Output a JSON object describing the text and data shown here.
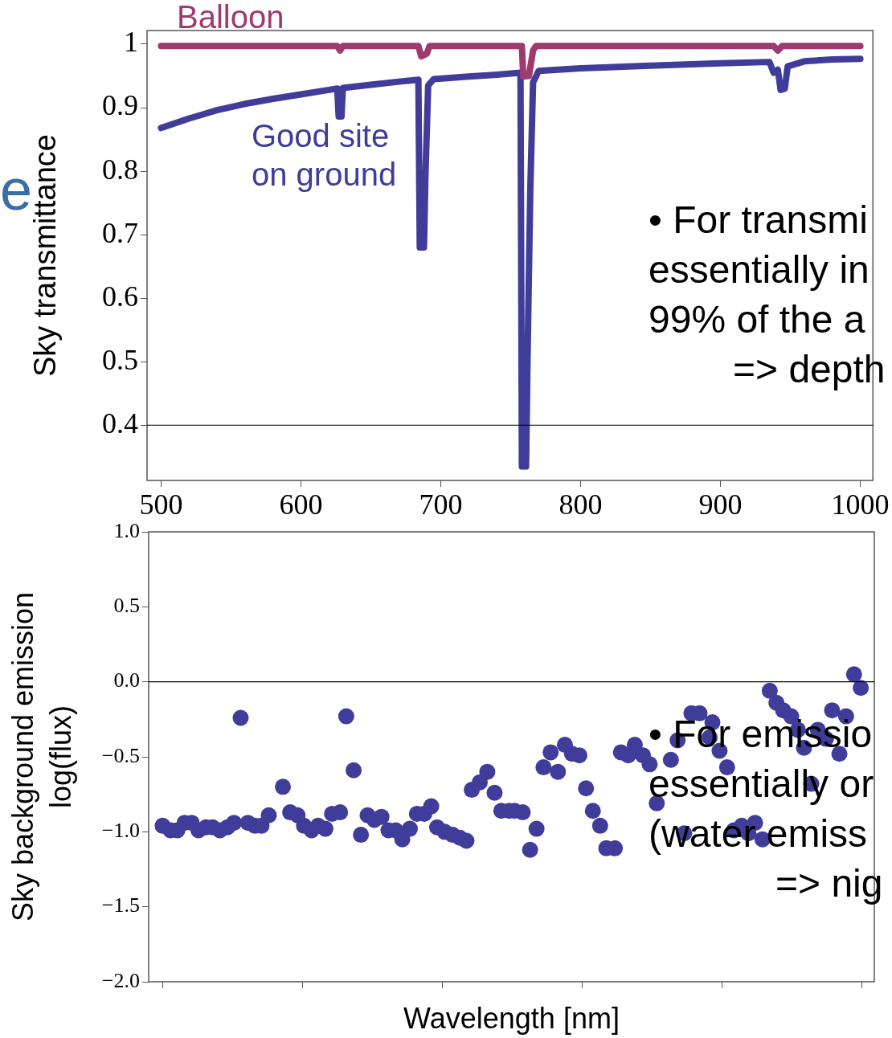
{
  "chart_data": [
    {
      "type": "line",
      "ylabel": "Sky transmittance",
      "xlim": [
        490,
        1009
      ],
      "ylim": [
        0.313,
        1.0215
      ],
      "xticks": [
        500,
        600,
        700,
        800,
        900,
        1000
      ],
      "yticks": [
        0.4,
        0.5,
        0.6,
        0.7,
        0.8,
        0.9,
        1.0
      ],
      "grid": false,
      "legend": false,
      "marker": "none",
      "line_style": "solid",
      "ref_lines": [
        {
          "axis": "y",
          "value": 0.4,
          "color": "#000000"
        }
      ],
      "annotations": [
        "e",
        "• For transmi\nessentially in\n99% of the a\n=> depth"
      ],
      "series": [
        {
          "name": "Balloon",
          "color": "#9e3a6e",
          "x": [
            500,
            626,
            628,
            630,
            684,
            686,
            690,
            692,
            758,
            759,
            763,
            766,
            768,
            938,
            941,
            944,
            1000
          ],
          "values": [
            0.997,
            0.997,
            0.99,
            0.997,
            0.997,
            0.981,
            0.985,
            0.997,
            0.997,
            0.949,
            0.95,
            0.99,
            0.997,
            0.997,
            0.99,
            0.997,
            0.997
          ]
        },
        {
          "name": "Good site on ground",
          "color": "#3f3c9a",
          "x": [
            500,
            520,
            540,
            560,
            580,
            600,
            620,
            626,
            627,
            629,
            630,
            650,
            670,
            684,
            685,
            688,
            689,
            691,
            695,
            720,
            740,
            757,
            758,
            761,
            762,
            764,
            766,
            770,
            800,
            850,
            900,
            935,
            938,
            941,
            943,
            946,
            948,
            960,
            980,
            1000
          ],
          "values": [
            0.868,
            0.883,
            0.896,
            0.906,
            0.914,
            0.921,
            0.928,
            0.93,
            0.886,
            0.886,
            0.931,
            0.936,
            0.941,
            0.944,
            0.68,
            0.68,
            0.79,
            0.935,
            0.945,
            0.949,
            0.952,
            0.955,
            0.335,
            0.335,
            0.5,
            0.77,
            0.94,
            0.958,
            0.962,
            0.966,
            0.97,
            0.972,
            0.955,
            0.96,
            0.928,
            0.93,
            0.965,
            0.973,
            0.976,
            0.977
          ]
        }
      ]
    },
    {
      "type": "scatter",
      "xlabel": "Wavelength [nm]",
      "ylabel": "Sky background emission\nlog(flux)",
      "xlim": [
        490,
        1009
      ],
      "ylim": [
        -2.0,
        1.0
      ],
      "xticks": [
        500,
        600,
        700,
        800,
        900,
        1000
      ],
      "yticks": [
        {
          "value": -2,
          "label": "−2.0"
        },
        {
          "value": -1.5,
          "label": "−1.5"
        },
        {
          "value": -1,
          "label": "−1.0"
        },
        {
          "value": -0.5,
          "label": "−0.5"
        },
        {
          "value": 0,
          "label": "0.0"
        },
        {
          "value": 0.5,
          "label": "0.5"
        },
        {
          "value": 1,
          "label": "1.0"
        }
      ],
      "tick_labels": "y",
      "grid": false,
      "legend": false,
      "marker": "circle",
      "ref_lines": [
        {
          "axis": "y",
          "value": 0,
          "color": "#000000"
        }
      ],
      "annotations": [
        "• For emissio\nessentially or\n(water emiss\n=> nig"
      ],
      "series": [
        {
          "color": "#3f3c9a",
          "x": [
            500,
            505.6,
            510.5,
            515.7,
            520.8,
            525.6,
            531,
            535.7,
            540.9,
            546.3,
            551,
            555.8,
            561,
            566,
            570.7,
            575.9,
            586,
            591.2,
            596.5,
            601.1,
            606.5,
            611.2,
            616.4,
            621.2,
            626.9,
            631.3,
            636.6,
            641.8,
            646.6,
            651.4,
            656.5,
            661.5,
            666.7,
            671.4,
            676.8,
            681.9,
            687.1,
            692.1,
            696.3,
            701.7,
            707.4,
            712.6,
            717.3,
            721.1,
            726.8,
            732.2,
            737.4,
            742.2,
            747.9,
            751.7,
            757.5,
            762.8,
            767.4,
            772.4,
            777.5,
            782.7,
            787.7,
            792.8,
            798,
            802.8,
            807.7,
            812.9,
            817.3,
            823.4,
            827.8,
            833,
            837.7,
            843.5,
            848.3,
            853.4,
            863.5,
            868.3,
            873,
            878.2,
            884,
            891.2,
            893.2,
            898.3,
            903.7,
            908.5,
            914.2,
            919,
            923.7,
            929,
            934.2,
            939,
            943.8,
            949.5,
            954.3,
            958.7,
            963.9,
            968.6,
            974.4,
            978.8,
            984,
            988.8,
            994.5,
            999.3
          ],
          "values": [
            -0.96,
            -0.99,
            -0.99,
            -0.94,
            -0.94,
            -0.99,
            -0.97,
            -0.97,
            -0.99,
            -0.97,
            -0.94,
            -0.24,
            -0.94,
            -0.96,
            -0.96,
            -0.89,
            -0.7,
            -0.87,
            -0.89,
            -0.96,
            -0.99,
            -0.96,
            -0.98,
            -0.88,
            -0.87,
            -0.23,
            -0.59,
            -1.02,
            -0.89,
            -0.92,
            -0.9,
            -0.99,
            -0.99,
            -1.05,
            -0.98,
            -0.88,
            -0.88,
            -0.83,
            -0.97,
            -1.0,
            -1.02,
            -1.04,
            -1.06,
            -0.72,
            -0.67,
            -0.6,
            -0.74,
            -0.86,
            -0.86,
            -0.86,
            -0.87,
            -1.12,
            -0.98,
            -0.57,
            -0.47,
            -0.6,
            -0.42,
            -0.48,
            -0.49,
            -0.71,
            -0.86,
            -0.96,
            -1.11,
            -1.11,
            -0.47,
            -0.49,
            -0.42,
            -0.49,
            -0.55,
            -0.81,
            -0.52,
            -0.39,
            -1.01,
            -0.21,
            -0.21,
            -0.37,
            -0.27,
            -0.46,
            -0.57,
            -0.99,
            -0.96,
            -1.01,
            -0.94,
            -1.05,
            -0.06,
            -0.14,
            -0.19,
            -0.23,
            -0.32,
            -0.44,
            -0.68,
            -0.32,
            -0.38,
            -0.19,
            -0.48,
            -0.23,
            0.05,
            -0.04
          ]
        }
      ]
    }
  ]
}
